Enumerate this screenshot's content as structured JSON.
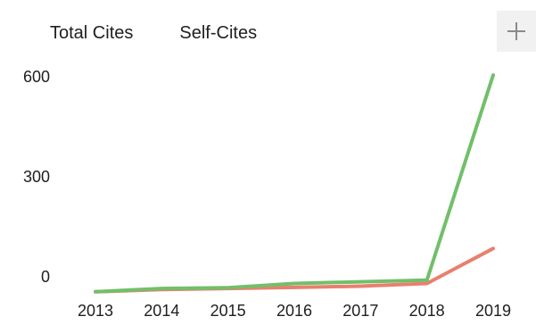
{
  "chart_data": {
    "type": "line",
    "x": [
      "2013",
      "2014",
      "2015",
      "2016",
      "2017",
      "2018",
      "2019"
    ],
    "series": [
      {
        "name": "Total Cites",
        "color": "#72bf6a",
        "values": [
          -45,
          -35,
          -33,
          -20,
          -15,
          -10,
          605
        ]
      },
      {
        "name": "Self-Cites",
        "color": "#e8806f",
        "values": [
          -45,
          -38,
          -35,
          -32,
          -28,
          -20,
          85
        ]
      }
    ],
    "y_ticks": [
      "600",
      "300",
      "0"
    ],
    "y_tick_values": [
      600,
      300,
      0
    ],
    "ylim": [
      -60,
      640
    ],
    "grid": false,
    "legend_position": "top-left"
  }
}
